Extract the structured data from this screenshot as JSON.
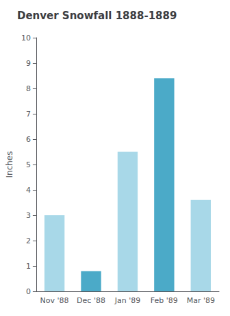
{
  "chart_data": {
    "type": "bar",
    "title": "Denver Snowfall 1888-1889",
    "ylabel": "Inches",
    "categories": [
      "Nov '88",
      "Dec '88",
      "Jan '89",
      "Feb '89",
      "Mar '89"
    ],
    "values": [
      3.0,
      0.8,
      5.5,
      8.4,
      3.6
    ],
    "colors": [
      "#a8d8e8",
      "#4baac8",
      "#a8d8e8",
      "#4baac8",
      "#a8d8e8"
    ],
    "ylim": [
      0,
      10
    ],
    "yticks": [
      0,
      1,
      2,
      3,
      4,
      5,
      6,
      7,
      8,
      9,
      10
    ],
    "grid": false
  }
}
